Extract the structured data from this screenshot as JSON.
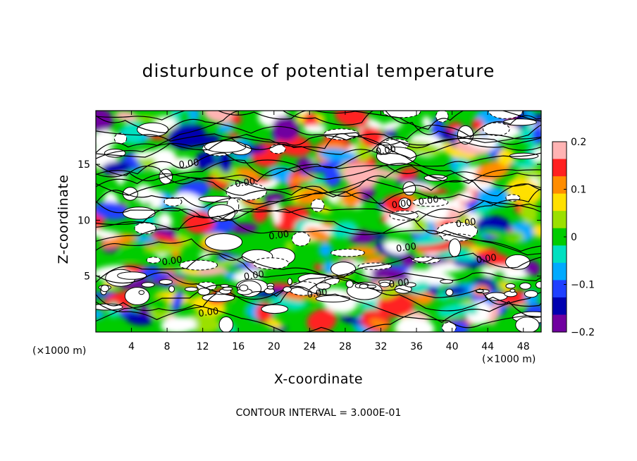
{
  "chart_data": {
    "type": "heatmap",
    "title": "disturbunce of potential temperature",
    "xlabel": "X-coordinate",
    "ylabel": "Z-coordinate",
    "x_unit": "(×1000 m)",
    "z_unit": "(×1000 m)",
    "xlim": [
      0,
      50
    ],
    "ylim": [
      0,
      19.8
    ],
    "x_ticks": [
      4,
      8,
      12,
      16,
      20,
      24,
      28,
      32,
      36,
      40,
      44,
      48
    ],
    "y_ticks": [
      5,
      10,
      15
    ],
    "colorbar": {
      "range": [
        -0.2,
        0.2
      ],
      "ticks": [
        "0.2",
        "0.1",
        "0",
        "−0.1",
        "−0.2"
      ],
      "tick_values": [
        0.2,
        0.1,
        0,
        -0.1,
        -0.2
      ],
      "colors": [
        "#ffb3b3",
        "#ff2020",
        "#ff8c00",
        "#ffe000",
        "#9be000",
        "#00cc00",
        "#00e0c0",
        "#00aaff",
        "#2040ff",
        "#0000b0",
        "#7000a0"
      ]
    },
    "contour_labels": [
      {
        "text": "0.00",
        "x": 10.5,
        "z": 14.8
      },
      {
        "text": "0.00",
        "x": 16.8,
        "z": 13.1
      },
      {
        "text": "0.00",
        "x": 32.6,
        "z": 16.0
      },
      {
        "text": "0.00",
        "x": 34.4,
        "z": 11.2
      },
      {
        "text": "0.00",
        "x": 37.4,
        "z": 11.5
      },
      {
        "text": "0.00",
        "x": 41.6,
        "z": 9.5
      },
      {
        "text": "0.00",
        "x": 20.6,
        "z": 8.4
      },
      {
        "text": "0.00",
        "x": 34.9,
        "z": 7.3
      },
      {
        "text": "0.00",
        "x": 43.9,
        "z": 6.3
      },
      {
        "text": "0.00",
        "x": 8.6,
        "z": 6.1
      },
      {
        "text": "0.00",
        "x": 17.8,
        "z": 4.8
      },
      {
        "text": "0.00",
        "x": 24.9,
        "z": 3.2
      },
      {
        "text": "0.00",
        "x": 34.1,
        "z": 4.1
      },
      {
        "text": "0.00",
        "x": 12.7,
        "z": 1.5
      }
    ],
    "contour_interval": "CONTOUR INTERVAL = 3.000E-01"
  }
}
